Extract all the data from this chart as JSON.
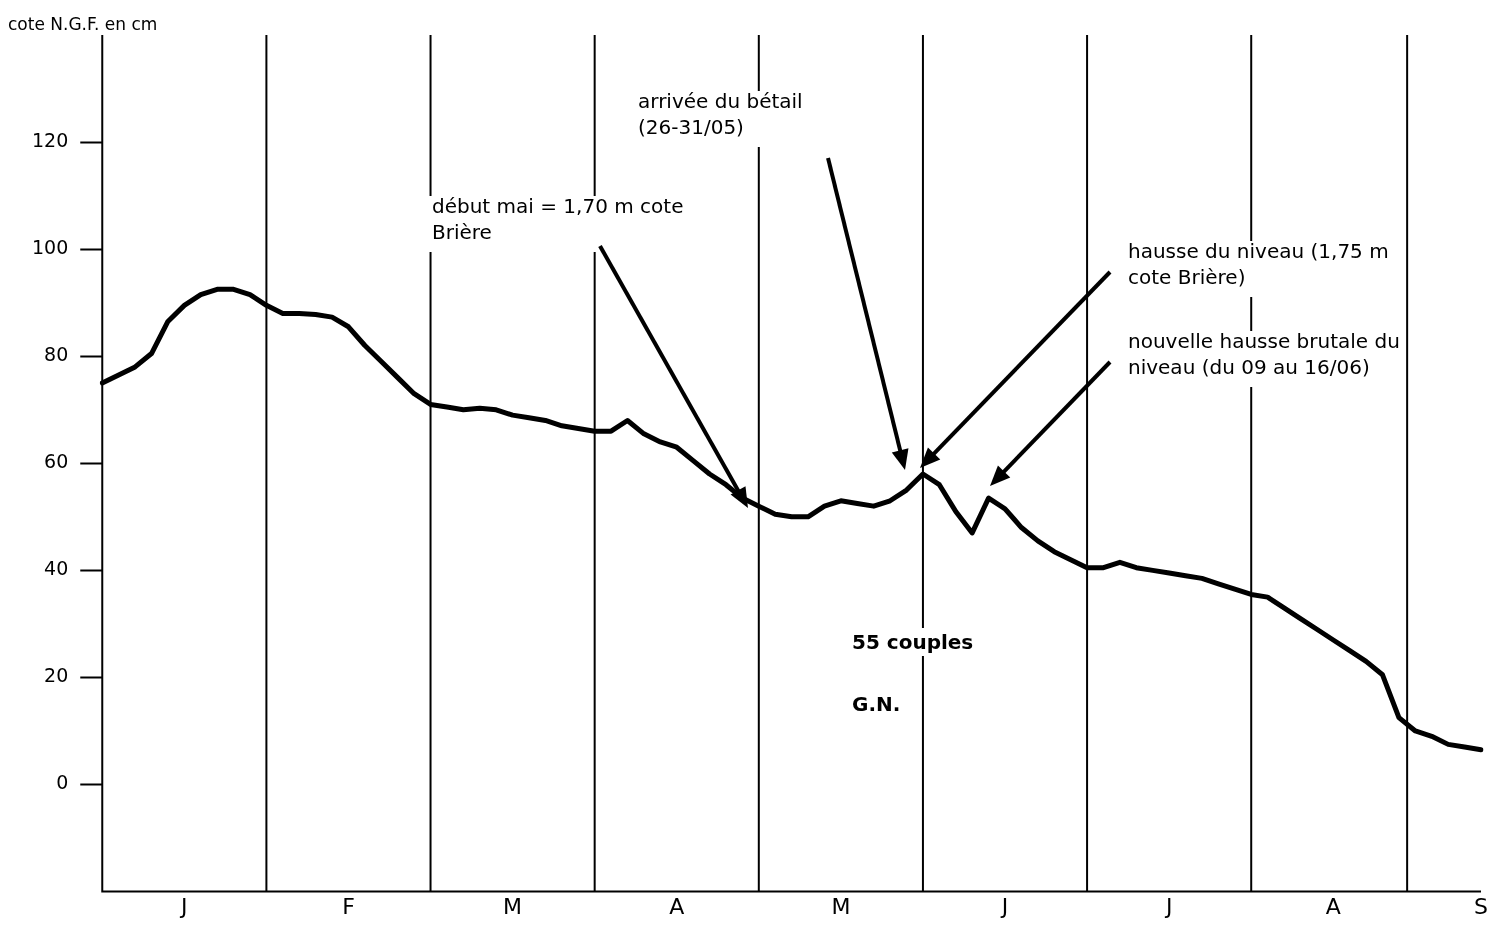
{
  "chart_data": {
    "type": "line",
    "ylabel": "cote N.G.F. en cm",
    "categories": [
      null,
      null,
      null,
      null,
      null,
      "J",
      null,
      null,
      null,
      null,
      null,
      null,
      null,
      null,
      null,
      "F",
      null,
      null,
      null,
      null,
      null,
      null,
      null,
      null,
      null,
      "M",
      null,
      null,
      null,
      null,
      null,
      null,
      null,
      null,
      null,
      "A",
      null,
      null,
      null,
      null,
      null,
      null,
      null,
      null,
      null,
      "M",
      null,
      null,
      null,
      null,
      null,
      null,
      null,
      null,
      null,
      "J",
      null,
      null,
      null,
      null,
      null,
      null,
      null,
      null,
      null,
      "J",
      null,
      null,
      null,
      null,
      null,
      null,
      null,
      null,
      null,
      "A",
      null,
      null,
      null,
      null,
      null,
      null,
      null,
      null,
      "S"
    ],
    "ylim": [
      -20,
      140
    ],
    "yticks": [
      0,
      20,
      40,
      60,
      80,
      100,
      120
    ],
    "grid": "x",
    "legend": false,
    "marker": "none",
    "line_style": "solid",
    "series": [
      {
        "color": "#000000",
        "values": [
          75,
          76.5,
          78,
          80.5,
          86.5,
          89.5,
          91.5,
          92.5,
          92.5,
          91.5,
          89.5,
          88,
          88,
          87.8,
          87.3,
          85.5,
          82,
          79,
          76,
          73,
          71,
          70.5,
          70,
          70.3,
          70,
          69,
          68.5,
          68,
          67,
          66.5,
          66,
          66,
          68,
          65.5,
          64,
          63,
          60.5,
          58,
          56,
          53.5,
          52,
          50.5,
          50,
          50,
          52,
          53,
          52.5,
          52,
          53,
          55,
          58,
          56,
          51,
          47,
          53.5,
          51.5,
          48,
          45.5,
          43.5,
          42,
          40.5,
          40.5,
          41.5,
          40.5,
          40,
          39.5,
          39,
          38.5,
          37.5,
          36.5,
          35.5,
          35,
          33,
          31,
          29,
          27,
          25,
          23,
          20.5,
          12.5,
          10,
          9,
          7.5,
          7,
          6.5
        ]
      }
    ],
    "annotations": [
      "début mai = 1,70 m cote Brière",
      "arrivée du bétail (26-31/05)",
      "hausse du niveau (1,75 m cote Brière)",
      "nouvelle hausse brutale du niveau (du 09 au 16/06)",
      "55 couples",
      "G.N."
    ]
  }
}
